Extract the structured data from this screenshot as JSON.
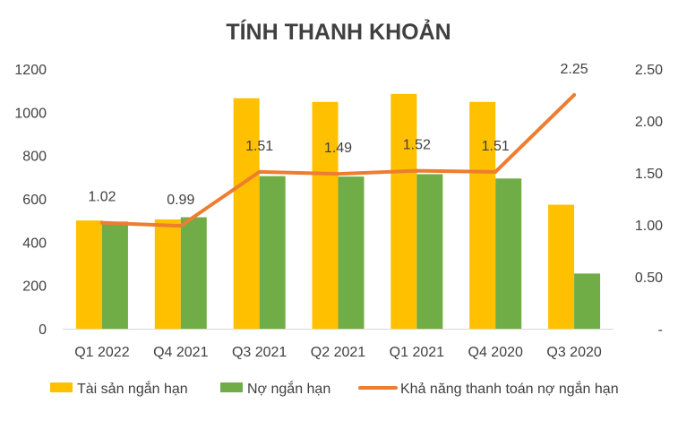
{
  "chart_data": {
    "type": "bar",
    "title": "TÍNH THANH KHOẢN",
    "categories": [
      "Q1 2022",
      "Q4 2021",
      "Q3 2021",
      "Q2 2021",
      "Q1 2021",
      "Q4 2020",
      "Q3 2020"
    ],
    "series": [
      {
        "name": "Tài sản ngắn hạn",
        "type": "bar",
        "axis": "left",
        "color": "#FFC000",
        "values": [
          500,
          505,
          1065,
          1048,
          1085,
          1048,
          573
        ]
      },
      {
        "name": "Nợ ngắn hạn",
        "type": "bar",
        "axis": "left",
        "color": "#70AD47",
        "values": [
          495,
          515,
          705,
          703,
          714,
          694,
          255
        ]
      },
      {
        "name": "Khả năng thanh toán nợ ngắn hạn",
        "type": "line",
        "axis": "right",
        "color": "#ED7D31",
        "values": [
          1.02,
          0.99,
          1.51,
          1.49,
          1.52,
          1.51,
          2.25
        ],
        "labels": [
          "1.02",
          "0.99",
          "1.51",
          "1.49",
          "1.52",
          "1.51",
          "2.25"
        ]
      }
    ],
    "y_left": {
      "ylim": [
        0,
        1200
      ],
      "ticks": [
        "0",
        "200",
        "400",
        "600",
        "800",
        "1000",
        "1200"
      ],
      "tick_values": [
        0,
        200,
        400,
        600,
        800,
        1000,
        1200
      ]
    },
    "y_right": {
      "ylim": [
        0,
        2.5
      ],
      "ticks": [
        "-",
        "0.50",
        "1.00",
        "1.50",
        "2.00",
        "2.50"
      ],
      "tick_values": [
        0,
        0.5,
        1.0,
        1.5,
        2.0,
        2.5
      ]
    },
    "grid": false,
    "legend": "bottom"
  }
}
